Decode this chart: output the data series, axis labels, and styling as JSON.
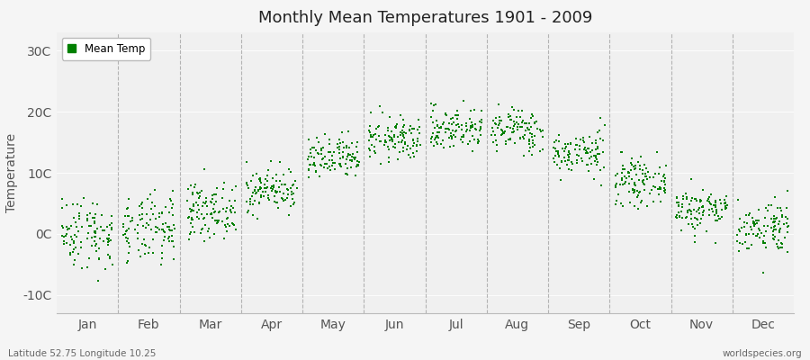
{
  "title": "Monthly Mean Temperatures 1901 - 2009",
  "ylabel": "Temperature",
  "xlabel_labels": [
    "Jan",
    "Feb",
    "Mar",
    "Apr",
    "May",
    "Jun",
    "Jul",
    "Aug",
    "Sep",
    "Oct",
    "Nov",
    "Dec"
  ],
  "ytick_labels": [
    "-10C",
    "0C",
    "10C",
    "20C",
    "30C"
  ],
  "ytick_values": [
    -10,
    0,
    10,
    20,
    30
  ],
  "ylim": [
    -13,
    33
  ],
  "dot_color": "#008000",
  "dot_size": 3,
  "background_color": "#f5f5f5",
  "plot_bg_color": "#f0f0f0",
  "grid_color": "#999999",
  "legend_label": "Mean Temp",
  "footnote_left": "Latitude 52.75 Longitude 10.25",
  "footnote_right": "worldspecies.org",
  "years": 109,
  "monthly_means": [
    0.2,
    0.5,
    3.8,
    7.2,
    12.2,
    15.5,
    17.2,
    17.0,
    13.2,
    8.5,
    4.0,
    1.2
  ],
  "monthly_stds": [
    3.0,
    2.8,
    2.2,
    1.8,
    1.8,
    1.8,
    1.8,
    1.8,
    1.8,
    1.8,
    1.8,
    2.2
  ],
  "seed": 42
}
